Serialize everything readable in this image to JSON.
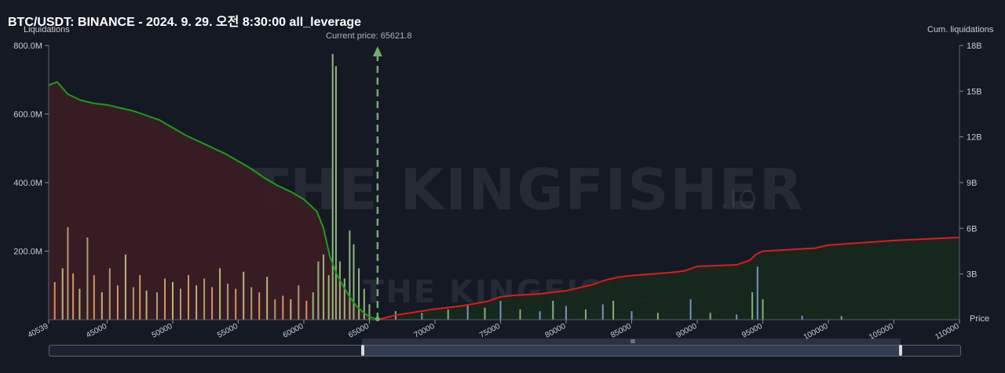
{
  "title": "BTC/USDT: BINANCE - 2024. 9. 29. 오전 8:30:00 all_leverage",
  "left_axis_title": "Liquidations",
  "right_axis_title": "Cum. liquidations",
  "x_axis_title": "Price",
  "current_price_label": "Current price: 65621.8",
  "watermark": "THE KINGFISHER",
  "watermark_suffix": ".IO",
  "colors": {
    "background": "#151924",
    "cum_short": "#1a9e1a",
    "cum_long": "#e01b1b",
    "short_area": "#3a1c24",
    "long_area": "#16291f",
    "current_price_line": "#6fae6f"
  },
  "chart_data": {
    "type": "bar",
    "x_ticks": [
      "40539",
      "45000",
      "50000",
      "55000",
      "60000",
      "65000",
      "70000",
      "75000",
      "80000",
      "85000",
      "90000",
      "95000",
      "100000",
      "105000",
      "110000"
    ],
    "x_range": [
      40539,
      110000
    ],
    "y_left_ticks": [
      "200.0M",
      "400.0M",
      "600.0M",
      "800.0M"
    ],
    "y_left_range": [
      0,
      800
    ],
    "y_right_ticks": [
      "3B",
      "6B",
      "9B",
      "12B",
      "15B",
      "18B"
    ],
    "y_right_range": [
      0,
      18
    ],
    "current_price": 65621.8,
    "cumulative_short_side": {
      "x": [
        40539,
        41200,
        41500,
        42000,
        43000,
        44000,
        45000,
        46000,
        47000,
        48000,
        49000,
        50000,
        51000,
        52000,
        53000,
        54000,
        55000,
        56000,
        57000,
        58000,
        59000,
        60000,
        61000,
        61500,
        62000,
        62500,
        63000,
        63500,
        64000,
        64500,
        65000,
        65621.8
      ],
      "y": [
        15.4,
        15.6,
        15.3,
        14.8,
        14.4,
        14.2,
        14.1,
        13.9,
        13.7,
        13.4,
        13.1,
        12.6,
        12.1,
        11.7,
        11.3,
        10.9,
        10.4,
        9.9,
        9.3,
        8.8,
        8.4,
        7.9,
        7.1,
        6.0,
        4.1,
        3.0,
        2.2,
        1.5,
        0.9,
        0.5,
        0.2,
        0.0
      ]
    },
    "cumulative_long_side": {
      "x": [
        65621.8,
        67000,
        70000,
        72000,
        74000,
        75000,
        76000,
        78000,
        79000,
        80000,
        81000,
        82000,
        83000,
        84000,
        85000,
        88000,
        89000,
        90000,
        93000,
        94000,
        94500,
        95000,
        99000,
        100000,
        105000,
        110000
      ],
      "y": [
        0.0,
        0.3,
        0.7,
        0.9,
        1.2,
        1.5,
        1.6,
        1.7,
        1.8,
        1.9,
        2.1,
        2.3,
        2.6,
        2.8,
        2.9,
        3.1,
        3.2,
        3.5,
        3.6,
        3.9,
        4.3,
        4.5,
        4.7,
        4.9,
        5.2,
        5.4
      ]
    },
    "liquidation_bars": [
      {
        "x": 41000,
        "y": 110
      },
      {
        "x": 41600,
        "y": 150
      },
      {
        "x": 42000,
        "y": 270
      },
      {
        "x": 42400,
        "y": 135
      },
      {
        "x": 42900,
        "y": 90
      },
      {
        "x": 43500,
        "y": 240
      },
      {
        "x": 44000,
        "y": 130
      },
      {
        "x": 44600,
        "y": 80
      },
      {
        "x": 45200,
        "y": 150
      },
      {
        "x": 45800,
        "y": 100
      },
      {
        "x": 46400,
        "y": 190
      },
      {
        "x": 47000,
        "y": 95
      },
      {
        "x": 47500,
        "y": 130
      },
      {
        "x": 48000,
        "y": 85
      },
      {
        "x": 48800,
        "y": 80
      },
      {
        "x": 49400,
        "y": 120
      },
      {
        "x": 50000,
        "y": 110
      },
      {
        "x": 50600,
        "y": 90
      },
      {
        "x": 51200,
        "y": 130
      },
      {
        "x": 51800,
        "y": 100
      },
      {
        "x": 52400,
        "y": 120
      },
      {
        "x": 53000,
        "y": 95
      },
      {
        "x": 53600,
        "y": 150
      },
      {
        "x": 54200,
        "y": 105
      },
      {
        "x": 54800,
        "y": 90
      },
      {
        "x": 55400,
        "y": 140
      },
      {
        "x": 56000,
        "y": 95
      },
      {
        "x": 56600,
        "y": 80
      },
      {
        "x": 57200,
        "y": 125
      },
      {
        "x": 57800,
        "y": 60
      },
      {
        "x": 58400,
        "y": 70
      },
      {
        "x": 59000,
        "y": 60
      },
      {
        "x": 59600,
        "y": 100
      },
      {
        "x": 60200,
        "y": 55
      },
      {
        "x": 60700,
        "y": 80
      },
      {
        "x": 61100,
        "y": 170
      },
      {
        "x": 61500,
        "y": 190
      },
      {
        "x": 61900,
        "y": 130
      },
      {
        "x": 62200,
        "y": 775
      },
      {
        "x": 62450,
        "y": 740
      },
      {
        "x": 62750,
        "y": 170
      },
      {
        "x": 63100,
        "y": 120
      },
      {
        "x": 63500,
        "y": 260
      },
      {
        "x": 63800,
        "y": 220
      },
      {
        "x": 64200,
        "y": 150
      },
      {
        "x": 64600,
        "y": 90
      },
      {
        "x": 65000,
        "y": 45
      },
      {
        "x": 67000,
        "y": 25
      },
      {
        "x": 69000,
        "y": 20
      },
      {
        "x": 71000,
        "y": 30
      },
      {
        "x": 72500,
        "y": 45
      },
      {
        "x": 73800,
        "y": 35
      },
      {
        "x": 75000,
        "y": 55
      },
      {
        "x": 76500,
        "y": 30
      },
      {
        "x": 78000,
        "y": 25
      },
      {
        "x": 79000,
        "y": 55
      },
      {
        "x": 80000,
        "y": 40
      },
      {
        "x": 81500,
        "y": 30
      },
      {
        "x": 82800,
        "y": 45
      },
      {
        "x": 83600,
        "y": 55
      },
      {
        "x": 85000,
        "y": 25
      },
      {
        "x": 87000,
        "y": 20
      },
      {
        "x": 89500,
        "y": 60
      },
      {
        "x": 91000,
        "y": 20
      },
      {
        "x": 93000,
        "y": 15
      },
      {
        "x": 94200,
        "y": 80
      },
      {
        "x": 94600,
        "y": 155
      },
      {
        "x": 95000,
        "y": 60
      },
      {
        "x": 98000,
        "y": 12
      },
      {
        "x": 101000,
        "y": 10
      }
    ]
  },
  "navigator": {
    "grip": "III"
  }
}
